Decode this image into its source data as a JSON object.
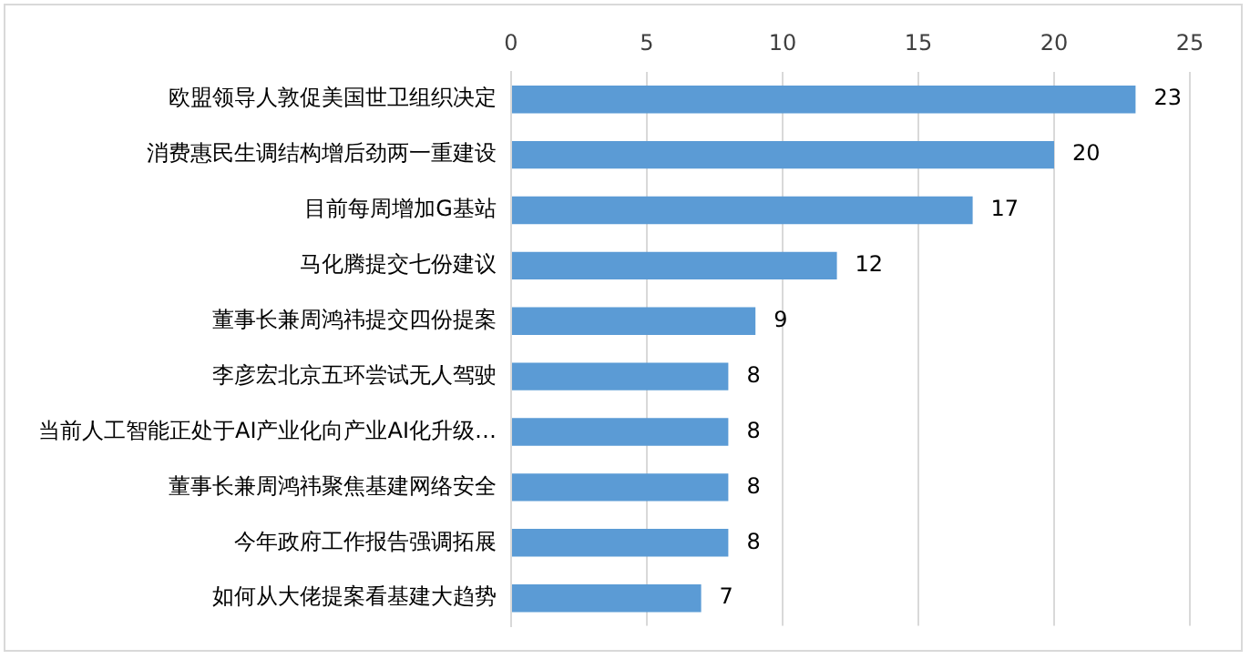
{
  "chart_data": {
    "type": "bar",
    "orientation": "horizontal",
    "categories": [
      "欧盟领导人敦促美国世卫组织决定",
      "消费惠民生调结构增后劲两一重建设",
      "目前每周增加G基站",
      "马化腾提交七份建议",
      "董事长兼周鸿祎提交四份提案",
      "李彦宏北京五环尝试无人驾驶",
      "当前人工智能正处于AI产业化向产业AI化升级…",
      "董事长兼周鸿祎聚焦基建网络安全",
      "今年政府工作报告强调拓展",
      "如何从大佬提案看基建大趋势"
    ],
    "values": [
      23,
      20,
      17,
      12,
      9,
      8,
      8,
      8,
      8,
      7
    ],
    "color": "#5b9bd5",
    "xlim": [
      0,
      25
    ],
    "xticks": [
      0,
      5,
      10,
      15,
      20,
      25
    ],
    "grid": "x",
    "data_labels": true
  }
}
